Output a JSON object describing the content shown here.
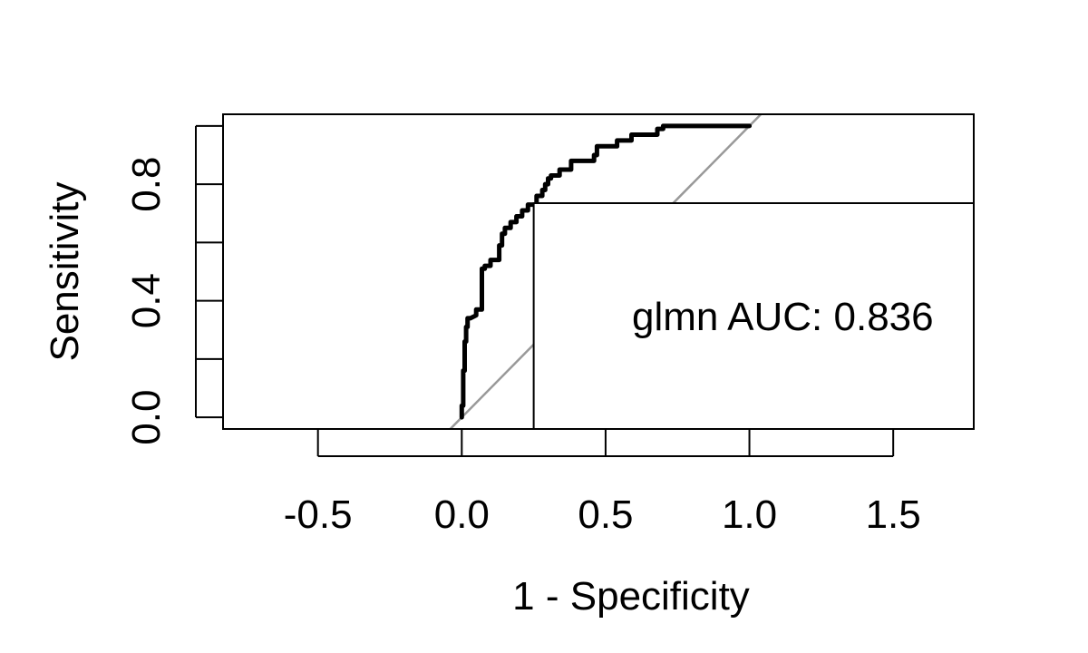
{
  "chart_data": {
    "type": "line",
    "title": "",
    "xlabel": "1 - Specificity",
    "ylabel": "Sensitivity",
    "xlim": [
      -0.83,
      1.78
    ],
    "ylim": [
      -0.04,
      1.04
    ],
    "xticks": [
      -0.5,
      0.0,
      0.5,
      1.0,
      1.5
    ],
    "xtick_labels": [
      "-0.5",
      "0.0",
      "0.5",
      "1.0",
      "1.5"
    ],
    "yticks": [
      0.0,
      0.2,
      0.4,
      0.6,
      0.8,
      1.0
    ],
    "ytick_labels": [
      "0.0",
      "",
      "0.4",
      "",
      "0.8",
      ""
    ],
    "grid": false,
    "colors": {
      "roc": "#000000",
      "diagonal": "#999999",
      "axes": "#000000"
    },
    "reference_line": {
      "x": [
        -0.04,
        1.04
      ],
      "y": [
        -0.04,
        1.04
      ]
    },
    "series": [
      {
        "x": [
          0.0,
          0.0,
          0.005,
          0.005,
          0.01,
          0.01,
          0.015,
          0.015,
          0.02,
          0.02,
          0.03,
          0.05,
          0.05,
          0.07,
          0.07,
          0.08,
          0.08,
          0.1,
          0.1,
          0.13,
          0.13,
          0.14,
          0.14,
          0.15,
          0.15,
          0.17,
          0.17,
          0.19,
          0.19,
          0.21,
          0.21,
          0.23,
          0.23,
          0.26,
          0.26,
          0.28,
          0.28,
          0.29,
          0.29,
          0.3,
          0.3,
          0.31,
          0.31,
          0.34,
          0.34,
          0.38,
          0.38,
          0.46,
          0.46,
          0.47,
          0.47,
          0.54,
          0.54,
          0.59,
          0.59,
          0.68,
          0.68,
          0.7,
          0.7,
          1.0
        ],
        "y": [
          0.0,
          0.04,
          0.04,
          0.16,
          0.16,
          0.26,
          0.26,
          0.31,
          0.31,
          0.34,
          0.34,
          0.35,
          0.37,
          0.37,
          0.51,
          0.51,
          0.52,
          0.52,
          0.54,
          0.54,
          0.59,
          0.59,
          0.63,
          0.63,
          0.65,
          0.65,
          0.67,
          0.67,
          0.69,
          0.69,
          0.71,
          0.71,
          0.73,
          0.73,
          0.76,
          0.76,
          0.78,
          0.78,
          0.8,
          0.8,
          0.82,
          0.82,
          0.83,
          0.83,
          0.85,
          0.85,
          0.88,
          0.88,
          0.9,
          0.9,
          0.93,
          0.93,
          0.95,
          0.95,
          0.97,
          0.97,
          0.99,
          0.99,
          1.0,
          1.0
        ]
      }
    ],
    "legend": {
      "text": "glmn AUC: 0.836",
      "position": "bottom-right",
      "box_x": [
        0.25,
        1.78
      ],
      "box_y": [
        -0.04,
        0.735
      ]
    }
  }
}
